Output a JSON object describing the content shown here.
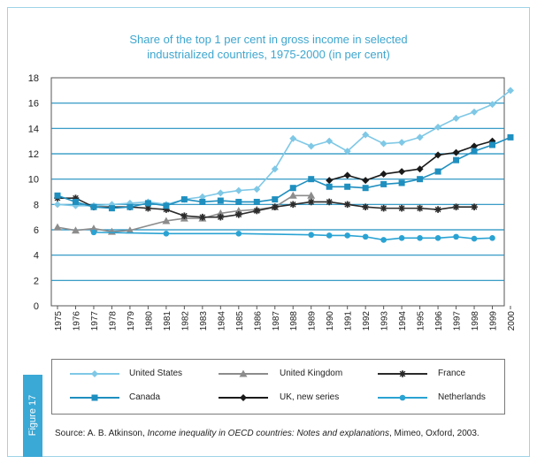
{
  "figure_label": "Figure 17",
  "source": {
    "prefix": "Source: A. B. Atkinson, ",
    "title": "Income inequality in OECD countries: Notes and explanations",
    "suffix": ", Mimeo, Oxford, 2003."
  },
  "chart_data": {
    "type": "line",
    "title_lines": [
      "Share of the top 1 per cent in gross income in selected",
      "industrialized countries, 1975-2000 (in per cent)"
    ],
    "xlabel": "",
    "ylabel": "",
    "x": [
      1975,
      1976,
      1977,
      1978,
      1979,
      1980,
      1981,
      1982,
      1983,
      1984,
      1985,
      1986,
      1987,
      1988,
      1989,
      1990,
      1991,
      1992,
      1993,
      1994,
      1995,
      1996,
      1997,
      1998,
      1999,
      2000
    ],
    "ylim": [
      0,
      18
    ],
    "yticks": [
      0,
      2,
      4,
      6,
      8,
      10,
      12,
      14,
      16,
      18
    ],
    "grid": "horizontal",
    "colors": {
      "us": "#7fc8e6",
      "uk": "#8c8c8c",
      "france": "#2b2b2b",
      "canada": "#1f8fbf",
      "uk_new": "#1a1a1a",
      "netherlands": "#2aa3d3",
      "title": "#3ea6cf",
      "tab": "#3aa9d6"
    },
    "series": [
      {
        "key": "us",
        "name": "United States",
        "marker": "diamond",
        "values": [
          8.0,
          7.9,
          7.9,
          8.0,
          8.1,
          8.2,
          8.0,
          8.4,
          8.6,
          8.9,
          9.1,
          9.2,
          10.8,
          13.2,
          12.6,
          13.0,
          12.2,
          13.5,
          12.8,
          12.9,
          13.3,
          14.1,
          14.8,
          15.3,
          15.9,
          17.0
        ]
      },
      {
        "key": "uk",
        "name": "United Kingdom",
        "marker": "triangle",
        "values": [
          6.2,
          5.95,
          6.1,
          5.85,
          5.95,
          null,
          6.7,
          6.9,
          6.9,
          7.3,
          7.5,
          7.6,
          7.8,
          8.7,
          8.7,
          null,
          null,
          null,
          null,
          null,
          null,
          null,
          null,
          null,
          null,
          null
        ]
      },
      {
        "key": "france",
        "name": "France",
        "marker": "star",
        "values": [
          8.5,
          8.5,
          7.8,
          7.8,
          7.8,
          7.7,
          7.6,
          7.1,
          7.0,
          7.0,
          7.2,
          7.5,
          7.8,
          8.0,
          8.2,
          8.2,
          8.0,
          7.8,
          7.7,
          7.7,
          7.7,
          7.6,
          7.8,
          7.8,
          null,
          null
        ]
      },
      {
        "key": "canada",
        "name": "Canada",
        "marker": "square",
        "values": [
          8.7,
          8.2,
          7.8,
          7.7,
          7.8,
          8.1,
          7.9,
          8.4,
          8.2,
          8.3,
          8.2,
          8.2,
          8.4,
          9.3,
          10.0,
          9.4,
          9.4,
          9.3,
          9.6,
          9.7,
          10.0,
          10.6,
          11.5,
          12.2,
          12.7,
          13.3
        ]
      },
      {
        "key": "uk_new",
        "name": "UK, new series",
        "marker": "diamond",
        "values": [
          null,
          null,
          null,
          null,
          null,
          null,
          null,
          null,
          null,
          null,
          null,
          null,
          null,
          null,
          null,
          9.9,
          10.3,
          9.9,
          10.4,
          10.6,
          10.8,
          11.9,
          12.1,
          12.6,
          13.0,
          null
        ]
      },
      {
        "key": "netherlands",
        "name": "Netherlands",
        "marker": "circle",
        "values": [
          null,
          null,
          5.8,
          null,
          null,
          null,
          5.7,
          null,
          null,
          null,
          5.7,
          null,
          null,
          null,
          5.6,
          5.55,
          5.55,
          5.45,
          5.2,
          5.35,
          5.35,
          5.35,
          5.45,
          5.3,
          5.35,
          null
        ]
      }
    ],
    "legend": [
      {
        "key": "us",
        "name": "United States"
      },
      {
        "key": "uk",
        "name": "United Kingdom"
      },
      {
        "key": "france",
        "name": "France"
      },
      {
        "key": "canada",
        "name": "Canada"
      },
      {
        "key": "uk_new",
        "name": "UK, new series"
      },
      {
        "key": "netherlands",
        "name": "Netherlands"
      }
    ]
  }
}
